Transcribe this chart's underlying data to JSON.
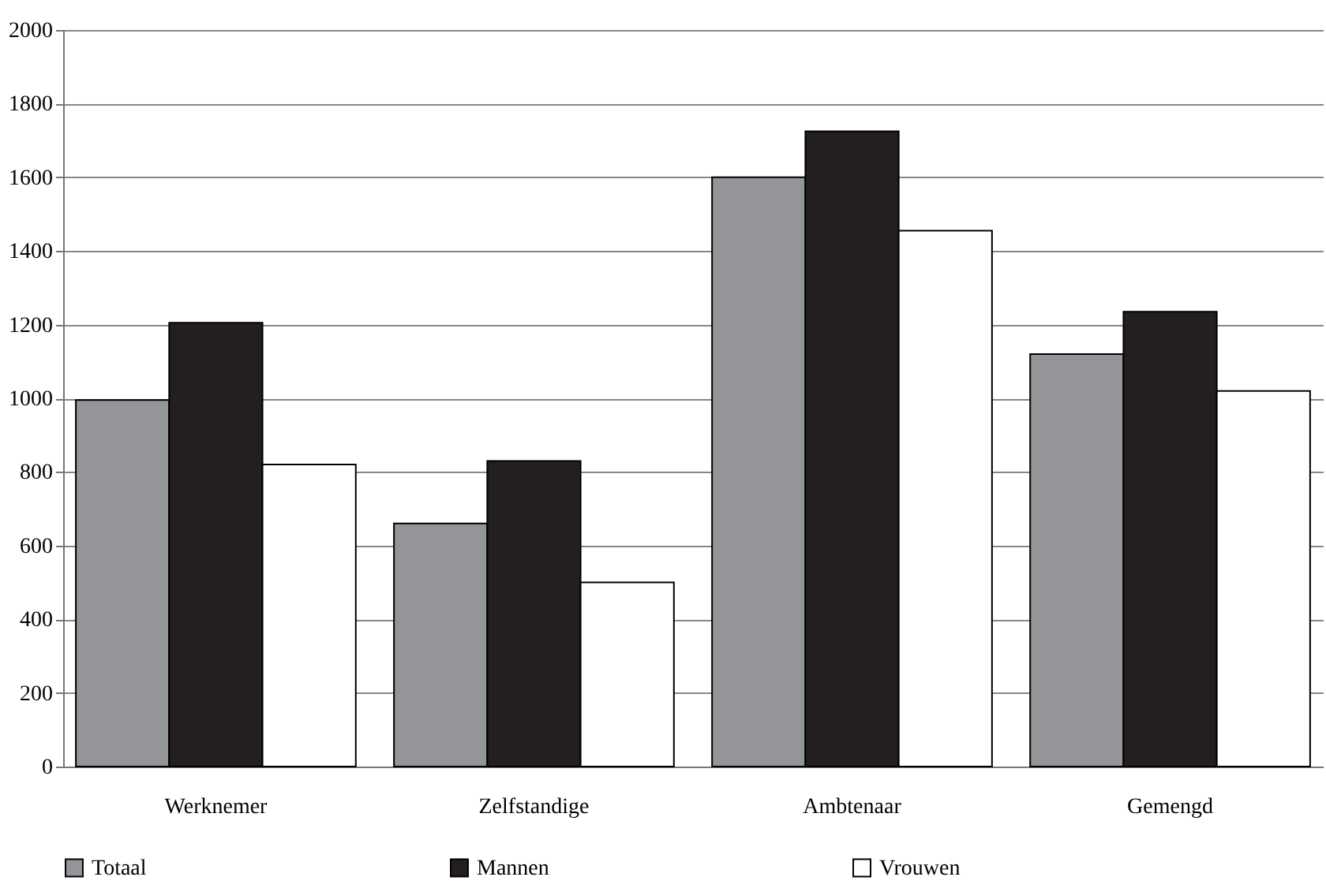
{
  "chart_data": {
    "type": "bar",
    "categories": [
      "Werknemer",
      "Zelfstandige",
      "Ambtenaar",
      "Gemengd"
    ],
    "series": [
      {
        "name": "Totaal",
        "color": "#939598",
        "values": [
          995,
          660,
          1600,
          1120
        ]
      },
      {
        "name": "Mannen",
        "color": "#231f20",
        "values": [
          1205,
          830,
          1725,
          1235
        ]
      },
      {
        "name": "Vrouwen",
        "color": "#ffffff",
        "values": [
          820,
          500,
          1455,
          1020
        ]
      }
    ],
    "ylim": [
      0,
      2000
    ],
    "yticks": [
      0,
      200,
      400,
      600,
      800,
      1000,
      1200,
      1400,
      1600,
      1800,
      2000
    ],
    "grid": "y",
    "legend": "bottom"
  }
}
